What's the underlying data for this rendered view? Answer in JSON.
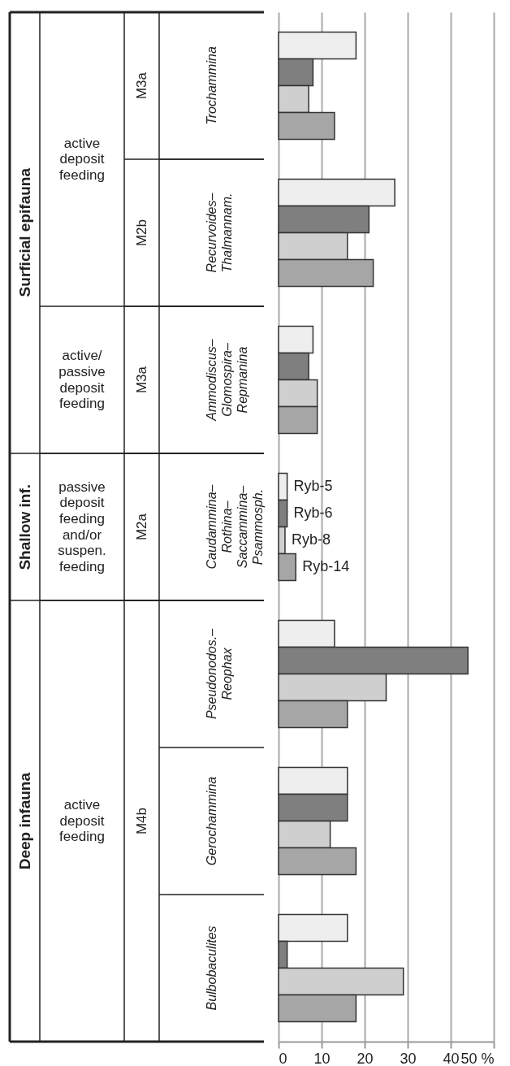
{
  "chart_data": {
    "type": "bar",
    "orientation": "horizontal",
    "categories": [
      "Trochammina",
      "Recurvoides–Thalmannam.",
      "Ammodiscus–Glomospira–Repmanina",
      "Caudammina–Rothina–Saccammina–Psammosph.",
      "Pseudonodos.–Reophax",
      "Gerochammina",
      "Bulbobaculites"
    ],
    "series": [
      {
        "name": "Ryb-5",
        "color": "#eeeeee",
        "values": [
          18,
          27,
          8,
          2,
          13,
          16,
          16
        ]
      },
      {
        "name": "Ryb-6",
        "color": "#7f7f7f",
        "values": [
          8,
          21,
          7,
          2,
          44,
          16,
          2
        ]
      },
      {
        "name": "Ryb-8",
        "color": "#cfcfcf",
        "values": [
          7,
          16,
          9,
          1.5,
          25,
          12,
          29
        ]
      },
      {
        "name": "Ryb-14",
        "color": "#a6a6a6",
        "values": [
          13,
          22,
          9,
          4,
          16,
          18,
          18
        ]
      }
    ],
    "xlim": [
      0,
      50
    ],
    "xticks": [
      0,
      10,
      20,
      30,
      40,
      {
        "value": 50,
        "label": "50 %"
      }
    ],
    "grid": "x",
    "annotations": [
      "Surficial epifauna",
      "Shallow inf.",
      "Deep infauna",
      "active deposit feeding",
      "active/ passive deposit feeding",
      "passive deposit feeding and/or suspen. feeding",
      "active deposit feeding",
      "M3a",
      "M2b",
      "M3a",
      "M2a",
      "M4b"
    ]
  }
}
